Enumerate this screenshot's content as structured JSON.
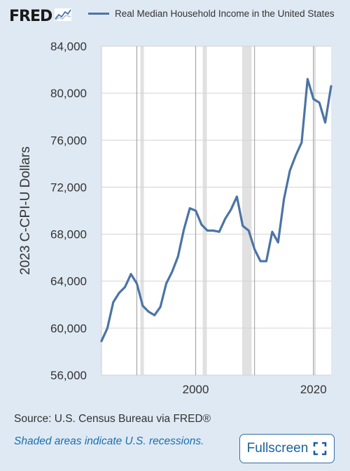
{
  "logo": {
    "text": "FRED",
    "icon": "line-graph-icon"
  },
  "legend": {
    "label": "Real Median Household Income in the United States",
    "color": "#4b74a5"
  },
  "source_text": "Source: U.S. Census Bureau via FRED®",
  "recession_note": "Shaded areas indicate U.S. recessions.",
  "fullscreen": {
    "label": "Fullscreen",
    "icon": "fullscreen-icon"
  },
  "colors": {
    "background": "#dfe9f3",
    "plot_background": "#ffffff",
    "recession_shade": "#e1e1e1",
    "line": "#4b74a5",
    "link": "#1a6fb0"
  },
  "chart_data": {
    "type": "line",
    "title": "",
    "xlabel": "",
    "ylabel": "2023 C-CPI-U Dollars",
    "xlim": [
      1984,
      2023
    ],
    "ylim": [
      56000,
      84000
    ],
    "x_ticks": [
      2000,
      2020
    ],
    "x_tick_labels": [
      "2000",
      "2020"
    ],
    "y_ticks": [
      56000,
      60000,
      64000,
      68000,
      72000,
      76000,
      80000,
      84000
    ],
    "y_tick_labels": [
      "56,000",
      "60,000",
      "64,000",
      "68,000",
      "72,000",
      "76,000",
      "80,000",
      "84,000"
    ],
    "grid": true,
    "legend_position": "top",
    "recessions": [
      [
        1990.6,
        1991.2
      ],
      [
        2001.2,
        2001.9
      ],
      [
        2007.9,
        2009.5
      ],
      [
        2020.1,
        2020.4
      ]
    ],
    "series": [
      {
        "name": "Real Median Household Income in the United States",
        "x": [
          1984,
          1985,
          1986,
          1987,
          1988,
          1989,
          1990,
          1991,
          1992,
          1993,
          1994,
          1995,
          1996,
          1997,
          1998,
          1999,
          2000,
          2001,
          2002,
          2003,
          2004,
          2005,
          2006,
          2007,
          2008,
          2009,
          2010,
          2011,
          2012,
          2013,
          2014,
          2015,
          2016,
          2017,
          2018,
          2019,
          2020,
          2021,
          2022,
          2023
        ],
        "values": [
          58900,
          60000,
          62200,
          63000,
          63500,
          64600,
          63800,
          61900,
          61400,
          61100,
          61800,
          63800,
          64800,
          66100,
          68400,
          70200,
          70000,
          68800,
          68300,
          68300,
          68200,
          69300,
          70100,
          71200,
          68700,
          68300,
          66700,
          65700,
          65700,
          68200,
          67300,
          71000,
          73400,
          74700,
          75800,
          81200,
          79500,
          79200,
          77500,
          80600
        ]
      }
    ]
  }
}
